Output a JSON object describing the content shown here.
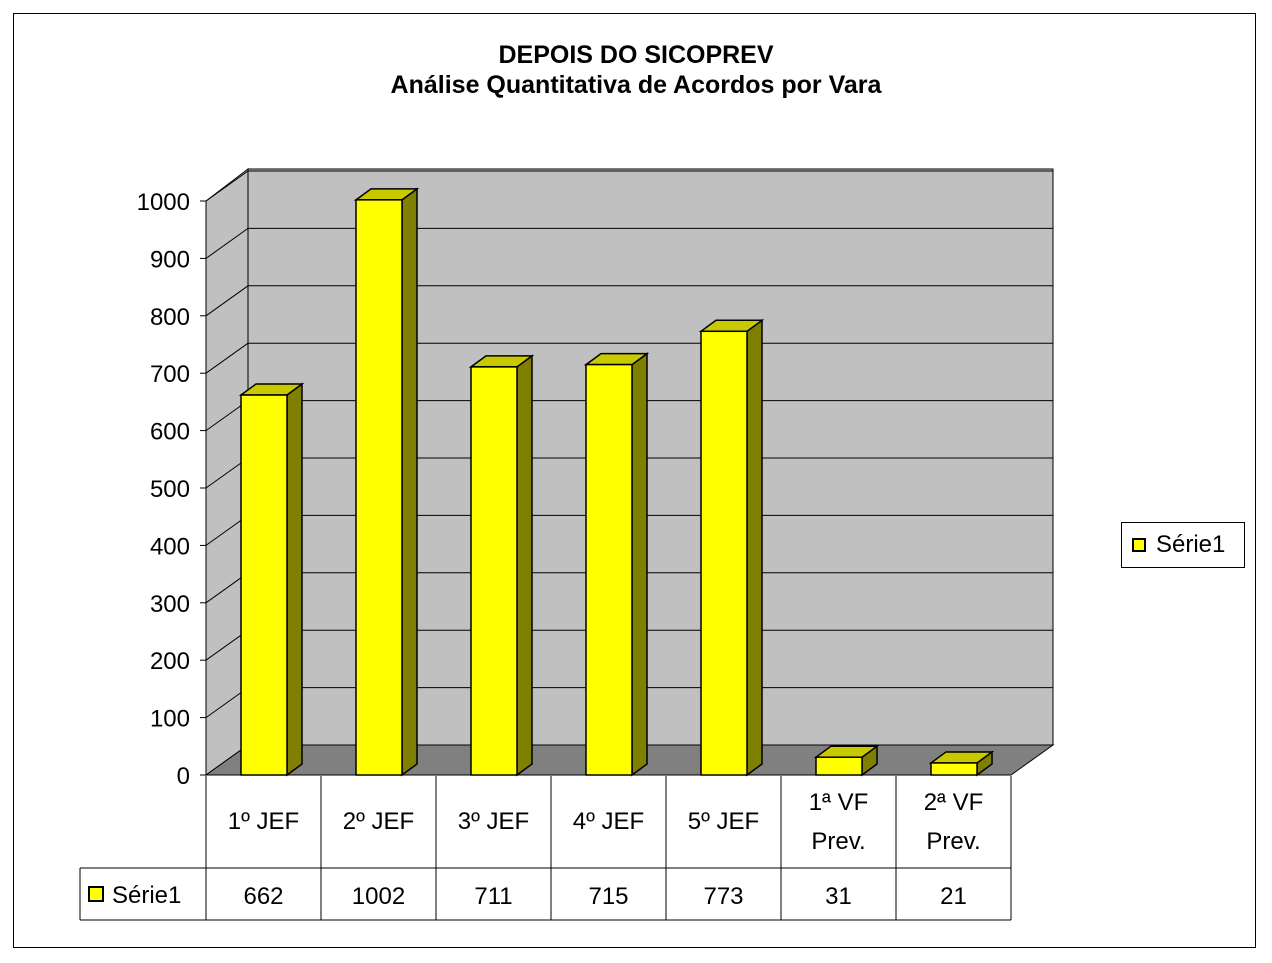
{
  "chart_data": {
    "type": "bar",
    "title": "DEPOIS DO SICOPREV",
    "subtitle": "Análise Quantitativa de Acordos por Vara",
    "categories": [
      "1º JEF",
      "2º JEF",
      "3º JEF",
      "4º JEF",
      "5º JEF",
      "1ª VF Prev.",
      "2ª VF Prev."
    ],
    "category_lines": [
      [
        "1º JEF"
      ],
      [
        "2º JEF"
      ],
      [
        "3º JEF"
      ],
      [
        "4º JEF"
      ],
      [
        "5º JEF"
      ],
      [
        "1ª VF",
        "Prev."
      ],
      [
        "2ª VF",
        "Prev."
      ]
    ],
    "series": [
      {
        "name": "Série1",
        "values": [
          662,
          1002,
          711,
          715,
          773,
          31,
          21
        ]
      }
    ],
    "yticks": [
      "0",
      "100",
      "200",
      "300",
      "400",
      "500",
      "600",
      "700",
      "800",
      "900",
      "1000"
    ],
    "ylim": [
      0,
      1000
    ],
    "grid": true,
    "legend_position": "right",
    "data_table": true,
    "colors": {
      "bar_front": "#ffff00",
      "bar_side": "#808000",
      "bar_top": "#c9c900",
      "wall": "#c0c0c0",
      "floor": "#808080"
    }
  }
}
